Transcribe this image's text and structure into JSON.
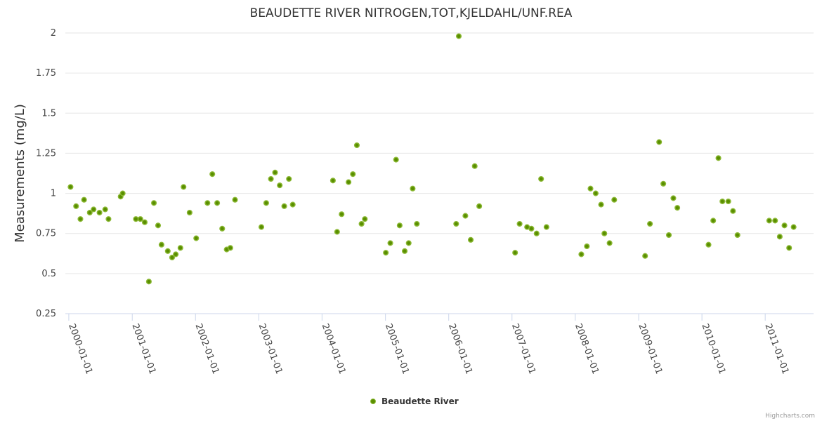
{
  "chart_data": {
    "type": "scatter",
    "title": "BEAUDETTE RIVER NITROGEN,TOT,KJELDAHL/UNF.REA",
    "ylabel": "Measurements (mg/L)",
    "xlabel": "",
    "ylim": [
      0.25,
      2
    ],
    "y_ticks": [
      "0.25",
      "0.5",
      "0.75",
      "1",
      "1.25",
      "1.5",
      "1.75",
      "2"
    ],
    "x_ticks": [
      "2000-01-01",
      "2001-01-01",
      "2002-01-01",
      "2003-01-01",
      "2004-01-01",
      "2005-01-01",
      "2006-01-01",
      "2007-01-01",
      "2008-01-01",
      "2009-01-01",
      "2010-01-01",
      "2011-01-01"
    ],
    "xlim": [
      "1999-12-12",
      "2011-10-07"
    ],
    "grid": true,
    "legend_position": "bottom-center",
    "series": [
      {
        "name": "Beaudette River",
        "color": "#5a8f00",
        "points": [
          {
            "x": "2000-01-11",
            "y": 1.04
          },
          {
            "x": "2000-02-12",
            "y": 0.92
          },
          {
            "x": "2000-03-08",
            "y": 0.84
          },
          {
            "x": "2000-03-29",
            "y": 0.96
          },
          {
            "x": "2000-05-01",
            "y": 0.88
          },
          {
            "x": "2000-05-23",
            "y": 0.9
          },
          {
            "x": "2000-06-26",
            "y": 0.88
          },
          {
            "x": "2000-07-29",
            "y": 0.9
          },
          {
            "x": "2000-08-17",
            "y": 0.84
          },
          {
            "x": "2000-10-26",
            "y": 0.98
          },
          {
            "x": "2000-11-07",
            "y": 1.0
          },
          {
            "x": "2001-01-22",
            "y": 0.84
          },
          {
            "x": "2001-02-17",
            "y": 0.84
          },
          {
            "x": "2001-03-14",
            "y": 0.82
          },
          {
            "x": "2001-04-07",
            "y": 0.45
          },
          {
            "x": "2001-05-06",
            "y": 0.94
          },
          {
            "x": "2001-05-30",
            "y": 0.8
          },
          {
            "x": "2001-06-19",
            "y": 0.68
          },
          {
            "x": "2001-07-25",
            "y": 0.64
          },
          {
            "x": "2001-08-19",
            "y": 0.6
          },
          {
            "x": "2001-09-09",
            "y": 0.62
          },
          {
            "x": "2001-10-06",
            "y": 0.66
          },
          {
            "x": "2001-10-24",
            "y": 1.04
          },
          {
            "x": "2001-11-28",
            "y": 0.88
          },
          {
            "x": "2002-01-05",
            "y": 0.72
          },
          {
            "x": "2002-03-11",
            "y": 0.94
          },
          {
            "x": "2002-04-08",
            "y": 1.12
          },
          {
            "x": "2002-05-06",
            "y": 0.94
          },
          {
            "x": "2002-06-04",
            "y": 0.78
          },
          {
            "x": "2002-06-30",
            "y": 0.65
          },
          {
            "x": "2002-07-21",
            "y": 0.66
          },
          {
            "x": "2002-08-17",
            "y": 0.96
          },
          {
            "x": "2003-01-16",
            "y": 0.79
          },
          {
            "x": "2003-02-13",
            "y": 0.94
          },
          {
            "x": "2003-03-12",
            "y": 1.09
          },
          {
            "x": "2003-04-05",
            "y": 1.13
          },
          {
            "x": "2003-05-02",
            "y": 1.05
          },
          {
            "x": "2003-05-28",
            "y": 0.92
          },
          {
            "x": "2003-06-24",
            "y": 1.09
          },
          {
            "x": "2003-07-16",
            "y": 0.93
          },
          {
            "x": "2004-03-04",
            "y": 1.08
          },
          {
            "x": "2004-03-28",
            "y": 0.76
          },
          {
            "x": "2004-04-23",
            "y": 0.87
          },
          {
            "x": "2004-06-02",
            "y": 1.07
          },
          {
            "x": "2004-06-27",
            "y": 1.12
          },
          {
            "x": "2004-07-20",
            "y": 1.3
          },
          {
            "x": "2004-08-16",
            "y": 0.81
          },
          {
            "x": "2004-09-04",
            "y": 0.84
          },
          {
            "x": "2005-01-03",
            "y": 0.63
          },
          {
            "x": "2005-01-29",
            "y": 0.69
          },
          {
            "x": "2005-03-03",
            "y": 1.21
          },
          {
            "x": "2005-03-24",
            "y": 0.8
          },
          {
            "x": "2005-04-22",
            "y": 0.64
          },
          {
            "x": "2005-05-15",
            "y": 0.69
          },
          {
            "x": "2005-06-07",
            "y": 1.03
          },
          {
            "x": "2005-07-01",
            "y": 0.81
          },
          {
            "x": "2006-02-13",
            "y": 0.81
          },
          {
            "x": "2006-02-28",
            "y": 1.98
          },
          {
            "x": "2006-04-07",
            "y": 0.86
          },
          {
            "x": "2006-05-08",
            "y": 0.71
          },
          {
            "x": "2006-05-31",
            "y": 1.17
          },
          {
            "x": "2006-06-26",
            "y": 0.92
          },
          {
            "x": "2007-01-19",
            "y": 0.63
          },
          {
            "x": "2007-02-14",
            "y": 0.81
          },
          {
            "x": "2007-03-29",
            "y": 0.79
          },
          {
            "x": "2007-04-23",
            "y": 0.78
          },
          {
            "x": "2007-05-23",
            "y": 0.75
          },
          {
            "x": "2007-06-18",
            "y": 1.09
          },
          {
            "x": "2007-07-19",
            "y": 0.79
          },
          {
            "x": "2008-02-05",
            "y": 0.62
          },
          {
            "x": "2008-03-08",
            "y": 0.67
          },
          {
            "x": "2008-03-29",
            "y": 1.03
          },
          {
            "x": "2008-04-28",
            "y": 1.0
          },
          {
            "x": "2008-05-29",
            "y": 0.93
          },
          {
            "x": "2008-06-17",
            "y": 0.75
          },
          {
            "x": "2008-07-17",
            "y": 0.69
          },
          {
            "x": "2008-08-13",
            "y": 0.96
          },
          {
            "x": "2009-02-07",
            "y": 0.61
          },
          {
            "x": "2009-03-07",
            "y": 0.81
          },
          {
            "x": "2009-04-29",
            "y": 1.32
          },
          {
            "x": "2009-05-23",
            "y": 1.06
          },
          {
            "x": "2009-06-24",
            "y": 0.74
          },
          {
            "x": "2009-07-20",
            "y": 0.97
          },
          {
            "x": "2009-08-12",
            "y": 0.91
          },
          {
            "x": "2010-02-08",
            "y": 0.68
          },
          {
            "x": "2010-03-07",
            "y": 0.83
          },
          {
            "x": "2010-04-06",
            "y": 1.22
          },
          {
            "x": "2010-04-29",
            "y": 0.95
          },
          {
            "x": "2010-06-02",
            "y": 0.95
          },
          {
            "x": "2010-06-29",
            "y": 0.89
          },
          {
            "x": "2010-07-25",
            "y": 0.74
          },
          {
            "x": "2011-01-24",
            "y": 0.83
          },
          {
            "x": "2011-02-27",
            "y": 0.83
          },
          {
            "x": "2011-03-26",
            "y": 0.73
          },
          {
            "x": "2011-04-22",
            "y": 0.8
          },
          {
            "x": "2011-05-19",
            "y": 0.66
          },
          {
            "x": "2011-06-14",
            "y": 0.79
          }
        ]
      }
    ]
  },
  "credits": "Highcharts.com"
}
